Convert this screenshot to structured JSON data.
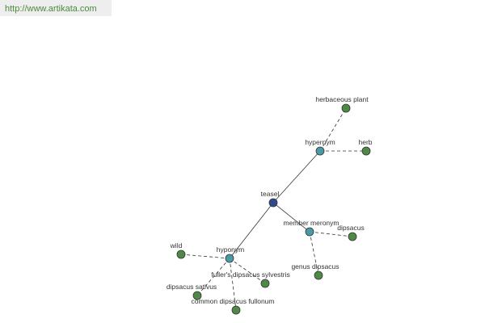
{
  "header": {
    "url": "http://www.artikata.com"
  },
  "nodes": [
    {
      "label": "teasel"
    },
    {
      "label": "hypernym"
    },
    {
      "label": "herbaceous plant"
    },
    {
      "label": "herb"
    },
    {
      "label": "member meronym"
    },
    {
      "label": "dipsacus"
    },
    {
      "label": "genus dipsacus"
    },
    {
      "label": "hyponym"
    },
    {
      "label": "wild"
    },
    {
      "label": "fuller's dipsacus sylvestris"
    },
    {
      "label": "dipsacus sativus"
    },
    {
      "label": "common dipsacus fullonum"
    }
  ]
}
